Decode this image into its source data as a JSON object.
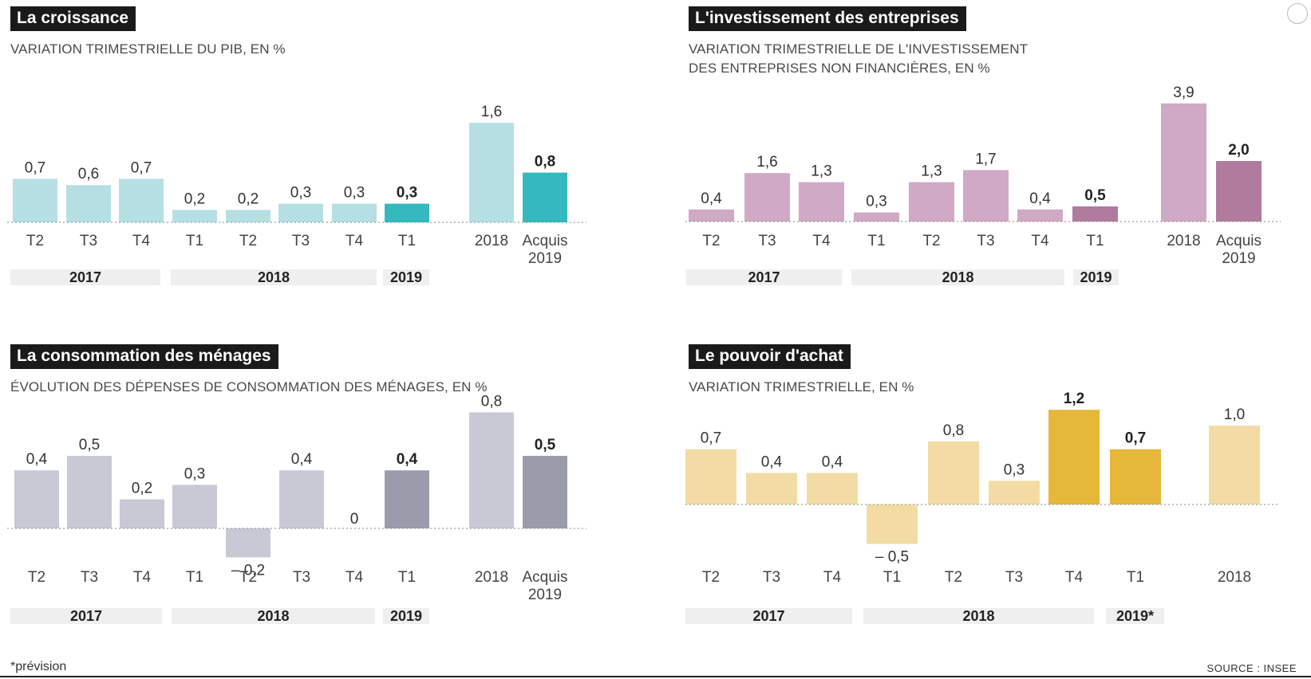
{
  "footnote": "*prévision",
  "source": "SOURCE : INSEE",
  "chart_data": [
    {
      "type": "bar",
      "title": "La croissance",
      "subtitle": "VARIATION TRIMESTRIELLE DU PIB, EN %",
      "categories": [
        "T2",
        "T3",
        "T4",
        "T1",
        "T2",
        "T3",
        "T4",
        "T1",
        "2018",
        "Acquis\n2019"
      ],
      "values": [
        0.7,
        0.6,
        0.7,
        0.2,
        0.2,
        0.3,
        0.3,
        0.3,
        1.6,
        0.8
      ],
      "value_labels": [
        "0,7",
        "0,6",
        "0,7",
        "0,2",
        "0,2",
        "0,3",
        "0,3",
        "0,3",
        "1,6",
        "0,8"
      ],
      "highlight": [
        false,
        false,
        false,
        false,
        false,
        false,
        false,
        true,
        false,
        true
      ],
      "groups": [
        {
          "label": "2017",
          "span": [
            0,
            2
          ]
        },
        {
          "label": "2018",
          "span": [
            3,
            6
          ]
        },
        {
          "label": "2019",
          "span": [
            7,
            7
          ]
        }
      ],
      "colors": {
        "base": "#b5dfe3",
        "highlight": "#36b8bf"
      }
    },
    {
      "type": "bar",
      "title": "L'investissement des entreprises",
      "subtitle": "VARIATION TRIMESTRIELLE DE L'INVESTISSEMENT\nDES ENTREPRISES NON FINANCIÈRES, EN %",
      "categories": [
        "T2",
        "T3",
        "T4",
        "T1",
        "T2",
        "T3",
        "T4",
        "T1",
        "2018",
        "Acquis\n2019"
      ],
      "values": [
        0.4,
        1.6,
        1.3,
        0.3,
        1.3,
        1.7,
        0.4,
        0.5,
        3.9,
        2.0
      ],
      "value_labels": [
        "0,4",
        "1,6",
        "1,3",
        "0,3",
        "1,3",
        "1,7",
        "0,4",
        "0,5",
        "3,9",
        "2,0"
      ],
      "highlight": [
        false,
        false,
        false,
        false,
        false,
        false,
        false,
        true,
        false,
        true
      ],
      "groups": [
        {
          "label": "2017",
          "span": [
            0,
            2
          ]
        },
        {
          "label": "2018",
          "span": [
            3,
            6
          ]
        },
        {
          "label": "2019",
          "span": [
            7,
            7
          ]
        }
      ],
      "colors": {
        "base": "#d0a9c4",
        "highlight": "#b07b9c"
      }
    },
    {
      "type": "bar",
      "title": "La consommation des ménages",
      "subtitle": "ÉVOLUTION DES DÉPENSES DE CONSOMMATION DES MÉNAGES, EN %",
      "categories": [
        "T2",
        "T3",
        "T4",
        "T1",
        "T2",
        "T3",
        "T4",
        "T1",
        "2018",
        "Acquis\n2019"
      ],
      "values": [
        0.4,
        0.5,
        0.2,
        0.3,
        -0.2,
        0.4,
        0,
        0.4,
        0.8,
        0.5
      ],
      "value_labels": [
        "0,4",
        "0,5",
        "0,2",
        "0,3",
        "– 0,2",
        "0,4",
        "0",
        "0,4",
        "0,8",
        "0,5"
      ],
      "highlight": [
        false,
        false,
        false,
        false,
        false,
        false,
        false,
        true,
        false,
        true
      ],
      "groups": [
        {
          "label": "2017",
          "span": [
            0,
            2
          ]
        },
        {
          "label": "2018",
          "span": [
            3,
            6
          ]
        },
        {
          "label": "2019",
          "span": [
            7,
            7
          ]
        }
      ],
      "colors": {
        "base": "#c8c9d4",
        "highlight": "#9b9cab"
      }
    },
    {
      "type": "bar",
      "title": "Le pouvoir d'achat",
      "subtitle": "VARIATION TRIMESTRIELLE, EN %",
      "categories": [
        "T2",
        "T3",
        "T4",
        "T1",
        "T2",
        "T3",
        "T4",
        "T1",
        "2018"
      ],
      "values": [
        0.7,
        0.4,
        0.4,
        -0.5,
        0.8,
        0.3,
        1.2,
        0.7,
        1.0
      ],
      "value_labels": [
        "0,7",
        "0,4",
        "0,4",
        "– 0,5",
        "0,8",
        "0,3",
        "1,2",
        "0,7",
        "1,0"
      ],
      "highlight": [
        false,
        false,
        false,
        false,
        false,
        false,
        true,
        true,
        false
      ],
      "bold_labels": [
        false,
        false,
        false,
        false,
        false,
        false,
        true,
        true,
        false
      ],
      "groups": [
        {
          "label": "2017",
          "span": [
            0,
            2
          ]
        },
        {
          "label": "2018",
          "span": [
            3,
            6
          ]
        },
        {
          "label": "2019*",
          "span": [
            7,
            7
          ]
        }
      ],
      "colors": {
        "base": "#f3dca3",
        "highlight": "#e5b83a"
      }
    }
  ]
}
